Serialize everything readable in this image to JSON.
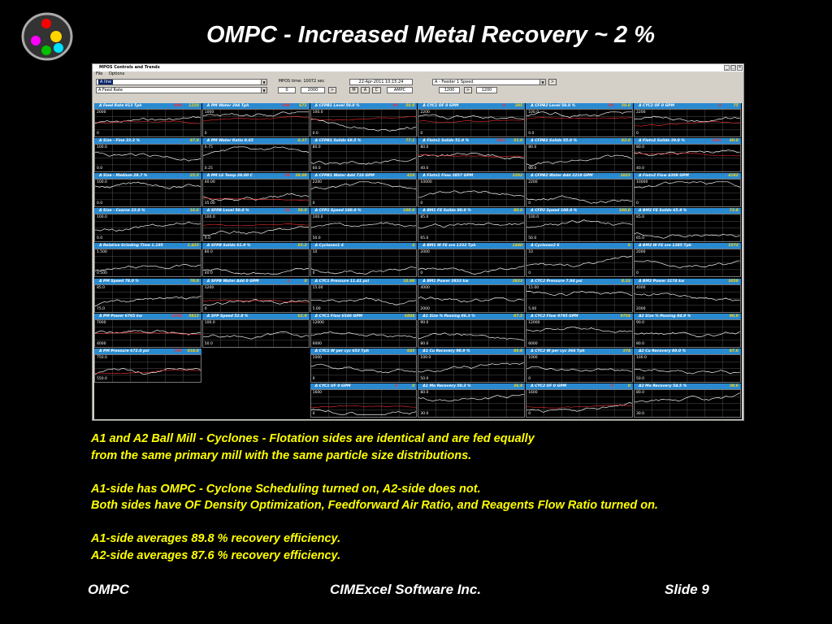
{
  "slide": {
    "title": "OMPC - Increased Metal Recovery ~ 2 %",
    "caption_lines": [
      "A1 and A2 Ball Mill - Cyclones - Flotation sides are identical and are fed equally",
      "from the same primary mill with the same particle size distributions.",
      "",
      "A1-side has OMPC - Cyclone Scheduling turned on, A2-side does not.",
      "Both sides have OF Density Optimization, Feedforward Air Ratio, and Reagents Flow Ratio turned on.",
      "",
      "A1-side averages 89.8 % recovery efficiency.",
      "A2-side averages 87.6 % recovery efficiency."
    ],
    "footer": {
      "left": "OMPC",
      "center": "CIMExcel Software Inc.",
      "right": "Slide 9"
    },
    "logo": {
      "icon": "colored-dots-logo",
      "colors": [
        "#ff0000",
        "#ffd400",
        "#ff00ff",
        "#00c000",
        "#00e0ff"
      ]
    }
  },
  "window": {
    "title": "MPOS Controls and Trends",
    "menu": [
      "File",
      "Options"
    ],
    "controls": {
      "minimize": "_",
      "maximize": "□",
      "close": "×"
    }
  },
  "toolbar": {
    "select1": "A Ilne",
    "select2": "A Feed Rate",
    "mpos_time_label": "MPOS time: 10072  sec",
    "val_a": "0",
    "val_b": "2000",
    "btn_next_a": ">",
    "date": "22-Apr-2011  10:15:24",
    "btn_m": "M",
    "btn_a": "A",
    "btn_c": "C",
    "ampc": "AMPC",
    "select3": "A - Feeder 1 Speed",
    "btn_next_b": ">",
    "val_c": "1200",
    "btn_next_c": ">",
    "val_d": "1200"
  },
  "panels": [
    {
      "title": "A Feed Rate   913  Tph",
      "ref": "800",
      "val": "1210",
      "max": "2000",
      "min": "0"
    },
    {
      "title": "A PM Water   394  Tph",
      "ref": "300",
      "val": "671",
      "max": "1000",
      "min": "0"
    },
    {
      "title": "A CFPB1 Level   50.0  %",
      "ref": "50",
      "val": "50.0",
      "max": "100.0",
      "min": "0.0"
    },
    {
      "title": "A CYC1 OF   0  GPM",
      "ref": "0",
      "val": "385",
      "max": "2200",
      "min": "0"
    },
    {
      "title": "A CFPB2 Level   50.0  %",
      "ref": "50",
      "val": "50.0",
      "max": "100.0",
      "min": "0.0"
    },
    {
      "title": "A CYC2 OF   0  GPM",
      "ref": "0",
      "val": "75",
      "max": "2200",
      "min": "0"
    },
    {
      "title": "A Size - Fine   33.3  %",
      "ref": "",
      "val": "47.9",
      "max": "100.0",
      "min": "0.0"
    },
    {
      "title": "A PM Water Ratio   0.65",
      "ref": "",
      "val": "0.37",
      "max": "0.75",
      "min": "0.25"
    },
    {
      "title": "A CFPB1 Solids   69.5  %",
      "ref": "",
      "val": "77.1",
      "max": "80.0",
      "min": "60.0"
    },
    {
      "title": "A Flotn1 Solids   51.9  %",
      "ref": "38.6",
      "val": "53.8",
      "max": "80.0",
      "min": "40.0"
    },
    {
      "title": "A CFPB2 Solids   55.0  %",
      "ref": "",
      "val": "83.0",
      "max": "80.0",
      "min": "60.0"
    },
    {
      "title": "A Flotn2 Solids   39.0  %",
      "ref": "38.6",
      "val": "40.0",
      "max": "80.0",
      "min": "40.0"
    },
    {
      "title": "A Size - Medium   28.7  %",
      "ref": "",
      "val": "25.5",
      "max": "100.0",
      "min": "0.0"
    },
    {
      "title": "A PM LS Temp   38.00  C",
      "ref": "38",
      "val": "38.00",
      "max": "40.00",
      "min": "35.00"
    },
    {
      "title": "A CFPB1 Water Add   710  GPM",
      "ref": "",
      "val": "410",
      "max": "2200",
      "min": "0"
    },
    {
      "title": "A Flotn1 Flow   3857  GPM",
      "ref": "",
      "val": "3292",
      "max": "10000",
      "min": "0"
    },
    {
      "title": "A CFPB2 Water Add   2218  GPM",
      "ref": "",
      "val": "1023",
      "max": "2200",
      "min": "0"
    },
    {
      "title": "A Flotn2 Flow   4308  GPM",
      "ref": "",
      "val": "4182",
      "max": "10000",
      "min": "0"
    },
    {
      "title": "A Size - Coarse   23.0  %",
      "ref": "",
      "val": "16.6",
      "max": "100.0",
      "min": "0.0"
    },
    {
      "title": "A SFPB Level   50.0  %",
      "ref": "50",
      "val": "50.0",
      "max": "100.0",
      "min": "0.0"
    },
    {
      "title": "A CFP1 Speed   100.0  %",
      "ref": "",
      "val": "100.0",
      "max": "100.0",
      "min": "50.0"
    },
    {
      "title": "A BM1 FE Solids   80.0  %",
      "ref": "",
      "val": "80.0",
      "max": "85.0",
      "min": "65.0"
    },
    {
      "title": "A CFP2 Speed   100.0  %",
      "ref": "",
      "val": "100.0",
      "max": "100.0",
      "min": "50.0"
    },
    {
      "title": "A BM2 FE Solids   65.8  %",
      "ref": "",
      "val": "73.8",
      "max": "85.0",
      "min": "65.0"
    },
    {
      "title": "A Relative Grinding Time   1.195",
      "ref": "",
      "val": "1.423",
      "max": "1.500",
      "min": "0.500"
    },
    {
      "title": "A SFPB Solids   61.9  %",
      "ref": "",
      "val": "65.2",
      "max": "80.0",
      "min": "40.0"
    },
    {
      "title": "A Cyclones1   4",
      "ref": "",
      "val": "4",
      "max": "10",
      "min": "0"
    },
    {
      "title": "A BM1 W FE sre   1332  Tph",
      "ref": "",
      "val": "1440",
      "max": "2000",
      "min": "0"
    },
    {
      "title": "A Cyclones2   6",
      "ref": "",
      "val": "6",
      "max": "10",
      "min": "0"
    },
    {
      "title": "A BM2 W FE sre   1385  Tph",
      "ref": "",
      "val": "1572",
      "max": "2000",
      "min": "0"
    },
    {
      "title": "A PM Speed   78.0  %",
      "ref": "",
      "val": "78.0",
      "max": "85.0",
      "min": "75.0"
    },
    {
      "title": "A SFPB Water Add   0  GPM",
      "ref": "0",
      "val": "0",
      "max": "3200",
      "min": "0"
    },
    {
      "title": "A CYC1 Pressure   11.41  psi",
      "ref": "",
      "val": "10.98",
      "max": "15.00",
      "min": "5.00"
    },
    {
      "title": "A BM1 Power   3833  kw",
      "ref": "",
      "val": "3833",
      "max": "4000",
      "min": "2000"
    },
    {
      "title": "A CYC2 Pressure   7.94  psi",
      "ref": "",
      "val": "8.33",
      "max": "15.00",
      "min": "5.00"
    },
    {
      "title": "A BM2 Power   3174  kw",
      "ref": "",
      "val": "3050",
      "max": "4000",
      "min": "2000"
    },
    {
      "title": "A PM Power   6765  kw",
      "ref": "6108",
      "val": "5813",
      "max": "7000",
      "min": "4000"
    },
    {
      "title": "A SFP Speed   52.8  %",
      "ref": "",
      "val": "62.8",
      "max": "100.0",
      "min": "50.0"
    },
    {
      "title": "A CYC1 Flow   6546  GPM",
      "ref": "",
      "val": "6884",
      "max": "12000",
      "min": "6000"
    },
    {
      "title": "A1 Size % Passing   86.3  %",
      "ref": "",
      "val": "87.5",
      "max": "90.0",
      "min": "80.0"
    },
    {
      "title": "A CYC2 Flow   9795  GPM",
      "ref": "",
      "val": "9754",
      "max": "12000",
      "min": "6000"
    },
    {
      "title": "A2 Size % Passing   84.8  %",
      "ref": "",
      "val": "86.8",
      "max": "90.0",
      "min": "80.0"
    },
    {
      "title": "A PM Pressure   672.0  psi",
      "ref": "700",
      "val": "634.0",
      "max": "750.0",
      "min": "550.0"
    },
    {
      "title": "A CYC1 W per cyc   653  Tph",
      "ref": "",
      "val": "645",
      "max": "1000",
      "min": "0"
    },
    {
      "title": "A1 Cu Recovery   90.9  %",
      "ref": "",
      "val": "89.8",
      "max": "100.0",
      "min": "50.0"
    },
    {
      "title": "A CYC2 W per cyc   366  Tph",
      "ref": "",
      "val": "374",
      "max": "1000",
      "min": "0"
    },
    {
      "title": "A2 Cu Recovery   89.0  %",
      "ref": "",
      "val": "87.6",
      "max": "100.0",
      "min": "50.0"
    },
    {
      "title": "A CYC1 UF   0  GPM",
      "ref": "0",
      "val": "0",
      "max": "1600",
      "min": "0"
    },
    {
      "title": "A1 Mo Recovery   50.3  %",
      "ref": "",
      "val": "36.9",
      "max": "80.0",
      "min": "30.0"
    },
    {
      "title": "A CYC2 UF   0  GPM",
      "ref": "0",
      "val": "0",
      "max": "1600",
      "min": "0"
    },
    {
      "title": "A2 Mo Recovery   54.5  %",
      "ref": "",
      "val": "38.6",
      "max": "80.0",
      "min": "30.0"
    }
  ]
}
